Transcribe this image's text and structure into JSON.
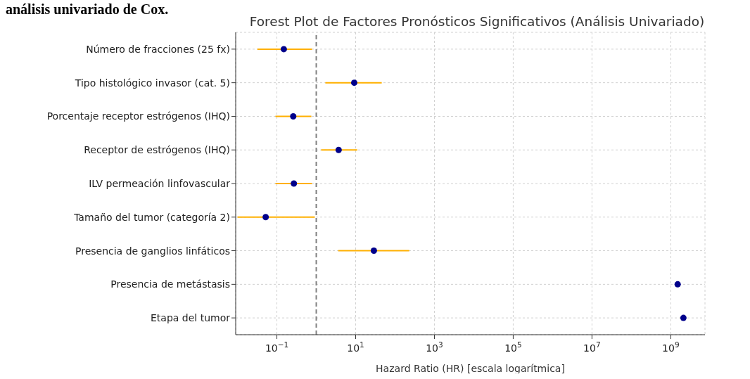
{
  "chart_data": {
    "type": "scatter",
    "title": "Forest Plot de Factores Pronósticos Significativos (Análisis Univariado)",
    "xlabel": "Hazard Ratio (HR) [escala logarítmica]",
    "annotations": [
      "análisis univariado de Cox."
    ],
    "categories": [
      "Número de fracciones (25 fx)",
      "Tipo histológico invasor (cat. 5)",
      "Porcentaje receptor estrógenos (IHQ)",
      "Receptor de estrógenos (IHQ)",
      "ILV permeación linfovascular",
      "Tamaño del tumor (categoría 2)",
      "Presencia de ganglios linfáticos",
      "Presencia de metástasis",
      "Etapa del tumor"
    ],
    "color": "#00008b",
    "values": [
      0.15,
      9.2,
      0.26,
      3.7,
      0.27,
      0.052,
      29,
      1500000000,
      2100000000
    ],
    "errors": [
      [
        0.032,
        0.78
      ],
      [
        1.7,
        46
      ],
      [
        0.092,
        0.75
      ],
      [
        1.33,
        11
      ],
      [
        0.092,
        0.78
      ],
      [
        0.01,
        0.92
      ],
      [
        3.6,
        230
      ],
      null,
      null
    ],
    "orientation": "horizontal",
    "log": "x",
    "xlim": [
      0.009,
      7400000000
    ],
    "xticks": [
      {
        "value": 0.1,
        "label": "10$^{−1}$"
      },
      {
        "value": 10,
        "label": "10$^{1}$"
      },
      {
        "value": 1000,
        "label": "10$^{3}$"
      },
      {
        "value": 100000,
        "label": "10$^{5}$"
      },
      {
        "value": 10000000,
        "label": "10$^{7}$"
      },
      {
        "value": 1000000000,
        "label": "10$^{9}$"
      }
    ],
    "ref_lines": [
      {
        "axis": "x",
        "value": 1,
        "color": "#808080",
        "line_style": "dashed"
      }
    ],
    "grid": true,
    "marker": "circle"
  }
}
